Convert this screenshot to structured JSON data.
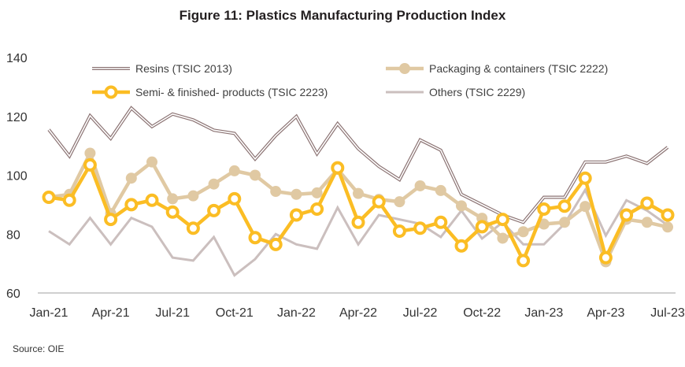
{
  "chart_data": {
    "type": "line",
    "title": "Figure 11: Plastics Manufacturing Production Index",
    "source": "Source: OIE",
    "xlabel": "",
    "ylabel": "",
    "ylim": [
      60,
      140
    ],
    "yticks": [
      60,
      80,
      100,
      120,
      140
    ],
    "grid": false,
    "legend_position": "top",
    "x": [
      "Jan-21",
      "Feb-21",
      "Mar-21",
      "Apr-21",
      "May-21",
      "Jun-21",
      "Jul-21",
      "Aug-21",
      "Sep-21",
      "Oct-21",
      "Nov-21",
      "Dec-21",
      "Jan-22",
      "Feb-22",
      "Mar-22",
      "Apr-22",
      "May-22",
      "Jun-22",
      "Jul-22",
      "Aug-22",
      "Sep-22",
      "Oct-22",
      "Nov-22",
      "Dec-22",
      "Jan-23",
      "Feb-23",
      "Mar-23",
      "Apr-23",
      "May-23",
      "Jun-23",
      "Jul-23",
      "Aug-23"
    ],
    "xtick_labels": [
      "Jan-21",
      "Apr-21",
      "Jul-21",
      "Oct-21",
      "Jan-22",
      "Apr-22",
      "Jul-22",
      "Oct-22",
      "Jan-23",
      "Apr-23",
      "Jul-23"
    ],
    "series": [
      {
        "name": "Resins (TSIC 2013)",
        "style": "double-line",
        "color": "#8c7474",
        "values": [
          115.5,
          106.5,
          120.2,
          112.5,
          122.8,
          116.5,
          120.8,
          118.8,
          115.3,
          114.2,
          105.5,
          113.5,
          120.0,
          107.3,
          117.5,
          109.0,
          103.0,
          98.5,
          112.0,
          108.5,
          93.5,
          90.0,
          86.5,
          84.0,
          92.5,
          92.5,
          104.5,
          104.5,
          106.5,
          104.0,
          109.5,
          109.5
        ]
      },
      {
        "name": "Packaging & containers (TSIC 2222)",
        "style": "line-with-filled-markers",
        "color": "#e0c9a3",
        "values": [
          92.5,
          93.5,
          107.5,
          87.0,
          99.0,
          104.5,
          92.0,
          93.0,
          97.0,
          101.5,
          100.0,
          94.5,
          93.5,
          94.0,
          102.0,
          93.8,
          91.8,
          91.0,
          96.4,
          94.8,
          89.6,
          85.4,
          78.6,
          80.8,
          83.4,
          84.0,
          89.4,
          70.6,
          85.0,
          84.0,
          82.4,
          86.4
        ]
      },
      {
        "name": "Semi- & finished- products (TSIC 2223)",
        "style": "line-with-hollow-markers",
        "color": "#fbbd24",
        "values": [
          92.5,
          91.5,
          103.5,
          85.0,
          90.0,
          91.5,
          87.5,
          82.0,
          88.0,
          92.0,
          78.8,
          76.5,
          86.5,
          88.5,
          102.5,
          84.0,
          91.0,
          81.0,
          82.0,
          84.0,
          76.0,
          82.5,
          85.0,
          71.0,
          88.5,
          89.5,
          99.0,
          72.0,
          86.5,
          90.5,
          86.5,
          87.5
        ]
      },
      {
        "name": "Others (TSIC 2229)",
        "style": "line",
        "color": "#cbbfbe",
        "values": [
          81.0,
          76.5,
          85.5,
          76.5,
          85.5,
          82.5,
          72.0,
          71.0,
          79.0,
          66.0,
          71.5,
          80.0,
          76.5,
          75.0,
          89.0,
          76.5,
          86.5,
          85.0,
          83.5,
          79.0,
          88.0,
          78.5,
          84.0,
          76.5,
          76.5,
          83.5,
          95.0,
          79.5,
          91.5,
          88.0,
          83.0,
          85.0
        ]
      }
    ]
  }
}
